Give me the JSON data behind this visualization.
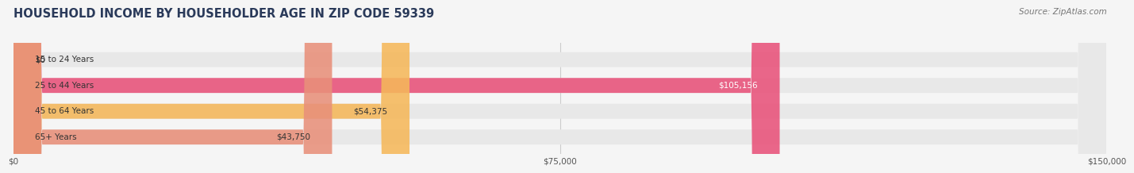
{
  "title": "HOUSEHOLD INCOME BY HOUSEHOLDER AGE IN ZIP CODE 59339",
  "source": "Source: ZipAtlas.com",
  "categories": [
    "15 to 24 Years",
    "25 to 44 Years",
    "45 to 64 Years",
    "65+ Years"
  ],
  "values": [
    0,
    105156,
    54375,
    43750
  ],
  "bar_colors": [
    "#a0a0d0",
    "#e8527a",
    "#f5b85a",
    "#e8907a"
  ],
  "label_texts": [
    "$0",
    "$105,156",
    "$54,375",
    "$43,750"
  ],
  "label_inside": [
    false,
    true,
    true,
    true
  ],
  "label_white": [
    false,
    true,
    false,
    false
  ],
  "xlim": [
    0,
    150000
  ],
  "xticks": [
    0,
    75000,
    150000
  ],
  "xtick_labels": [
    "$0",
    "$75,000",
    "$150,000"
  ],
  "bar_height": 0.58,
  "background_color": "#f5f5f5",
  "bar_bg_color": "#e8e8e8",
  "title_color": "#2a3a5a",
  "title_fontsize": 10.5,
  "source_fontsize": 7.5,
  "label_fontsize": 7.5,
  "category_fontsize": 7.5
}
